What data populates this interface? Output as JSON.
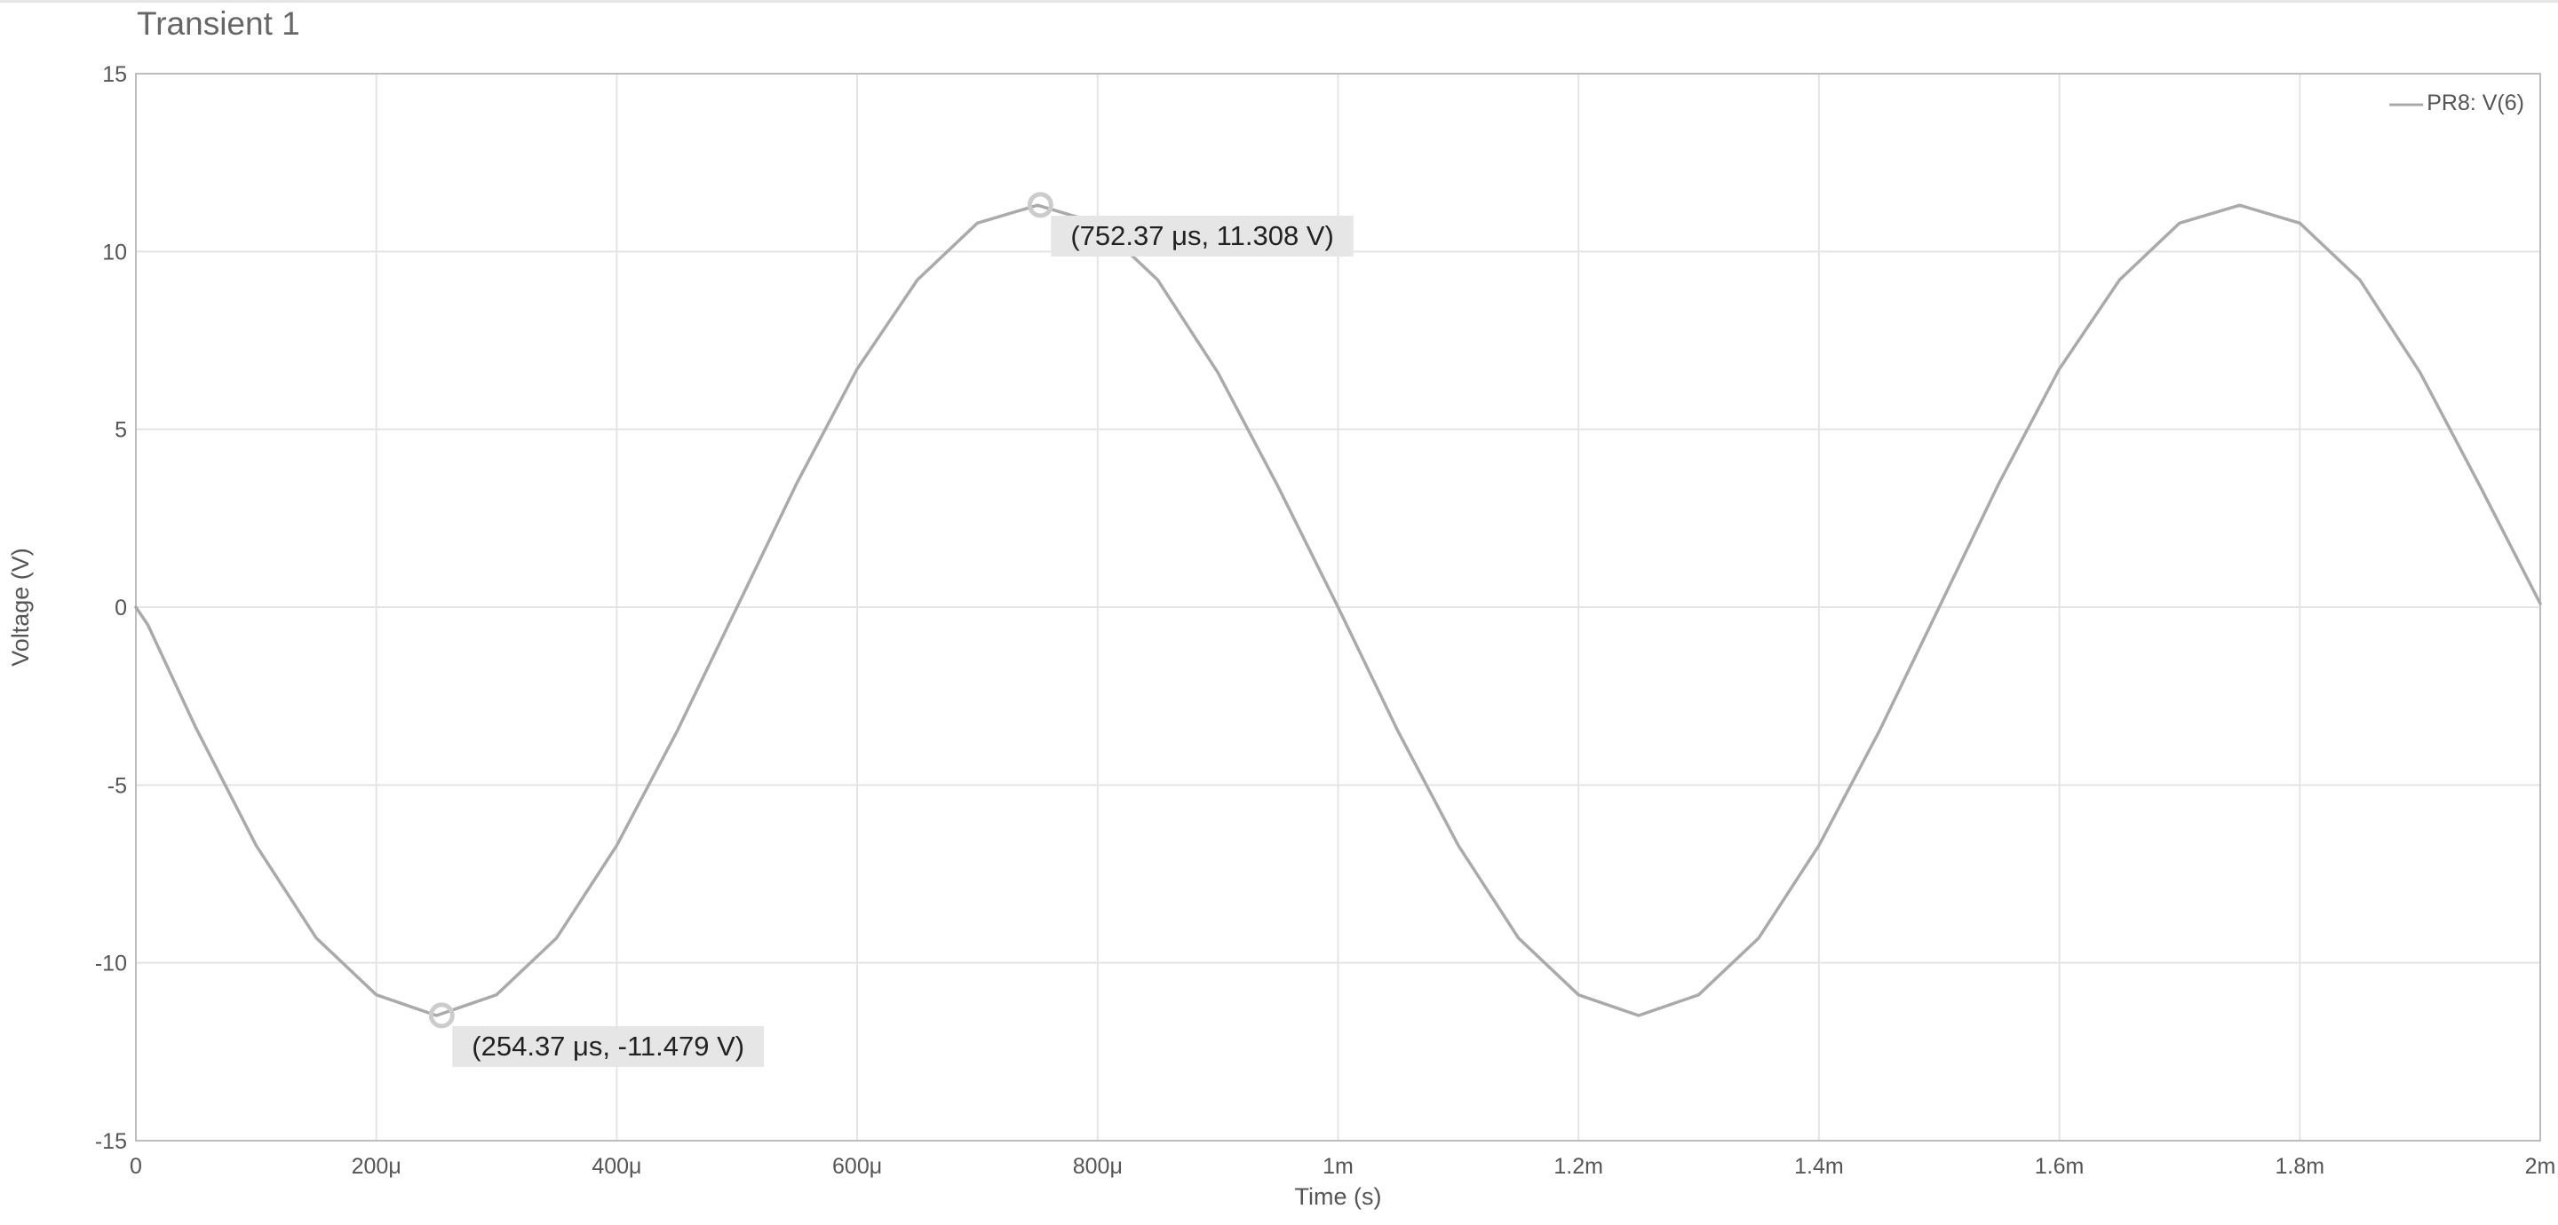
{
  "chart_data": {
    "type": "line",
    "title": "Transient 1",
    "xlabel": "Time (s)",
    "ylabel": "Voltage (V)",
    "xlim": [
      0,
      0.002
    ],
    "ylim": [
      -15,
      15
    ],
    "grid": true,
    "legend_position": "top-right",
    "x_ticks": [
      {
        "value": 0,
        "label": "0"
      },
      {
        "value": 0.0002,
        "label": "200μ"
      },
      {
        "value": 0.0004,
        "label": "400μ"
      },
      {
        "value": 0.0006,
        "label": "600μ"
      },
      {
        "value": 0.0008,
        "label": "800μ"
      },
      {
        "value": 0.001,
        "label": "1m"
      },
      {
        "value": 0.0012,
        "label": "1.2m"
      },
      {
        "value": 0.0014,
        "label": "1.4m"
      },
      {
        "value": 0.0016,
        "label": "1.6m"
      },
      {
        "value": 0.0018,
        "label": "1.8m"
      },
      {
        "value": 0.002,
        "label": "2m"
      }
    ],
    "y_ticks": [
      {
        "value": 15,
        "label": "15"
      },
      {
        "value": 10,
        "label": "10"
      },
      {
        "value": 5,
        "label": "5"
      },
      {
        "value": 0,
        "label": "0"
      },
      {
        "value": -5,
        "label": "-5"
      },
      {
        "value": -10,
        "label": "-10"
      },
      {
        "value": -15,
        "label": "-15"
      }
    ],
    "series": [
      {
        "name": "PR8: V(6)",
        "color": "#aaaaaa",
        "x": [
          0,
          1e-05,
          5e-05,
          0.0001,
          0.00015,
          0.0002,
          0.00025,
          0.0003,
          0.00035,
          0.0004,
          0.00045,
          0.0005,
          0.00055,
          0.0006,
          0.00065,
          0.0007,
          0.00075,
          0.0008,
          0.00085,
          0.0009,
          0.00095,
          0.001,
          0.00105,
          0.0011,
          0.00115,
          0.0012,
          0.00125,
          0.0013,
          0.00135,
          0.0014,
          0.00145,
          0.0015,
          0.00155,
          0.0016,
          0.00165,
          0.0017,
          0.00175,
          0.0018,
          0.00185,
          0.0019,
          0.00195,
          0.002
        ],
        "y": [
          0,
          -0.5,
          -3.4,
          -6.7,
          -9.3,
          -10.9,
          -11.48,
          -10.9,
          -9.3,
          -6.7,
          -3.5,
          0,
          3.5,
          6.7,
          9.2,
          10.8,
          11.3,
          10.8,
          9.2,
          6.6,
          3.4,
          0,
          -3.5,
          -6.7,
          -9.3,
          -10.9,
          -11.48,
          -10.9,
          -9.3,
          -6.7,
          -3.5,
          0,
          3.5,
          6.7,
          9.2,
          10.8,
          11.3,
          10.8,
          9.2,
          6.6,
          3.4,
          0.1
        ]
      }
    ],
    "annotations": [
      {
        "x": 0.00075237,
        "y": 11.308,
        "text": "(752.37 μs, 11.308 V)"
      },
      {
        "x": 0.00025437,
        "y": -11.479,
        "text": "(254.37 μs, -11.479 V)"
      }
    ]
  }
}
